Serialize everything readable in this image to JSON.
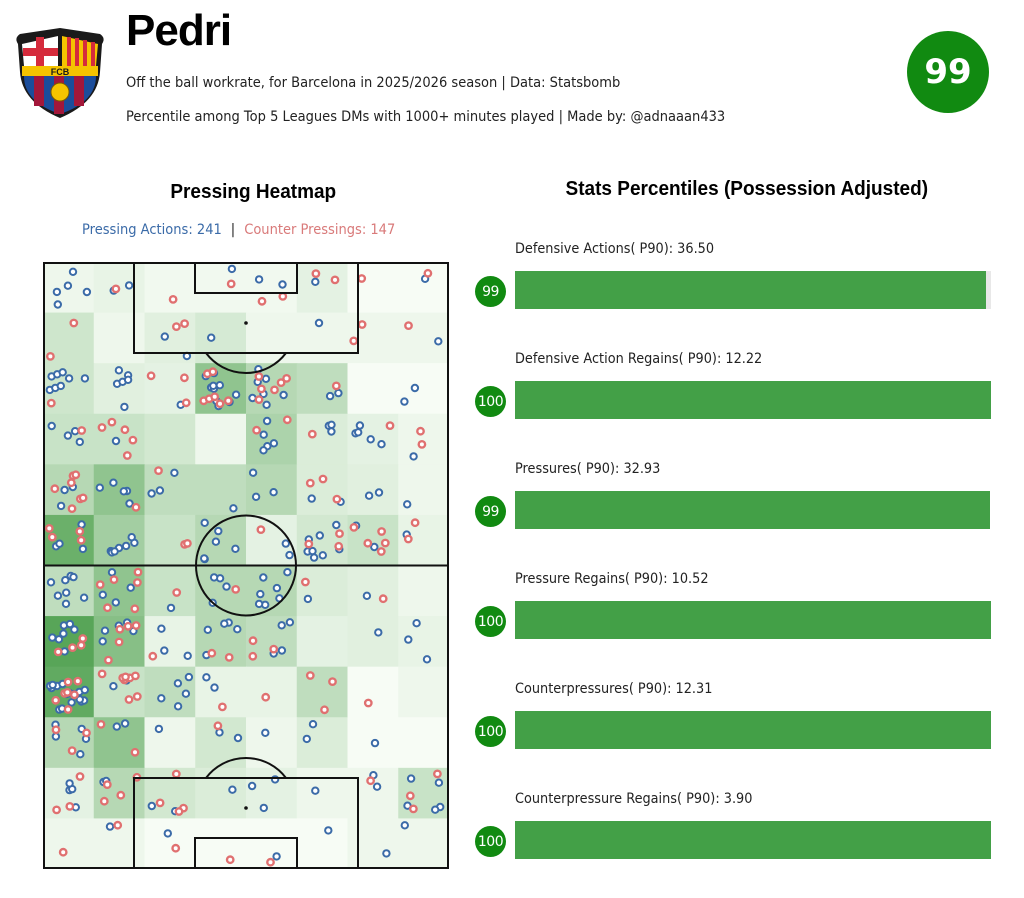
{
  "header": {
    "player_name": "Pedri",
    "subtitle_line1": "Off the ball workrate, for Barcelona in 2025/2026 season | Data: Statsbomb",
    "subtitle_line2": "Percentile among Top 5 Leagues DMs with 1000+ minutes played | Made by: @adnaaan433",
    "overall_percentile": "99",
    "crest_text": "FCB",
    "accent_color": "#118a11"
  },
  "heatmap": {
    "title": "Pressing Heatmap",
    "pressing_actions_label": "Pressing Actions: 241",
    "separator": "|",
    "counter_pressings_label": "Counter Pressings: 147",
    "pressing_color": "#3b6ba8",
    "counter_color": "#e07070"
  },
  "stats": {
    "title": "Stats Percentiles (Possession Adjusted)",
    "items": [
      {
        "label": "Defensive Actions( P90): 36.50",
        "percentile": "99"
      },
      {
        "label": "Defensive Action Regains( P90): 12.22",
        "percentile": "100"
      },
      {
        "label": "Pressures( P90): 32.93",
        "percentile": "99"
      },
      {
        "label": "Pressure Regains( P90): 10.52",
        "percentile": "100"
      },
      {
        "label": "Counterpressures( P90): 12.31",
        "percentile": "100"
      },
      {
        "label": "Counterpressure Regains( P90): 3.90",
        "percentile": "100"
      }
    ]
  },
  "chart_data": [
    {
      "type": "heatmap",
      "title": "Pressing Heatmap",
      "subtitle": "Pressing Actions: 241 | Counter Pressings: 147",
      "grid": {
        "cols": 8,
        "rows": 12
      },
      "intensity": [
        [
          0.05,
          0.08,
          0.03,
          0.03,
          0.03,
          0.1,
          0.0,
          0.0
        ],
        [
          0.22,
          0.05,
          0.12,
          0.18,
          0.05,
          0.05,
          0.05,
          0.05
        ],
        [
          0.22,
          0.12,
          0.1,
          0.55,
          0.35,
          0.3,
          0.0,
          0.0
        ],
        [
          0.25,
          0.25,
          0.2,
          0.05,
          0.4,
          0.15,
          0.1,
          0.05
        ],
        [
          0.35,
          0.55,
          0.3,
          0.3,
          0.35,
          0.15,
          0.12,
          0.05
        ],
        [
          0.75,
          0.45,
          0.25,
          0.35,
          0.1,
          0.2,
          0.25,
          0.08
        ],
        [
          0.3,
          0.55,
          0.25,
          0.35,
          0.35,
          0.15,
          0.12,
          0.05
        ],
        [
          0.85,
          0.6,
          0.08,
          0.35,
          0.3,
          0.1,
          0.12,
          0.08
        ],
        [
          0.8,
          0.25,
          0.3,
          0.08,
          0.08,
          0.3,
          0.0,
          0.05
        ],
        [
          0.35,
          0.55,
          0.05,
          0.2,
          0.05,
          0.15,
          0.0,
          0.0
        ],
        [
          0.1,
          0.35,
          0.2,
          0.15,
          0.1,
          0.05,
          0.05,
          0.25
        ],
        [
          0.05,
          0.05,
          0.0,
          0.0,
          0.0,
          0.0,
          0.05,
          0.05
        ]
      ],
      "legend": [
        "Pressing Actions",
        "Counter Pressings"
      ],
      "counts": {
        "Pressing Actions": 241,
        "Counter Pressings": 147
      }
    },
    {
      "type": "bar",
      "title": "Stats Percentiles (Possession Adjusted)",
      "categories": [
        "Defensive Actions( P90)",
        "Defensive Action Regains( P90)",
        "Pressures( P90)",
        "Pressure Regains( P90)",
        "Counterpressures( P90)",
        "Counterpressure Regains( P90)"
      ],
      "values": [
        99,
        100,
        99,
        100,
        100,
        100
      ],
      "raw_values": [
        36.5,
        12.22,
        32.93,
        10.52,
        12.31,
        3.9
      ],
      "xlim": [
        0,
        100
      ],
      "orientation": "horizontal"
    }
  ]
}
